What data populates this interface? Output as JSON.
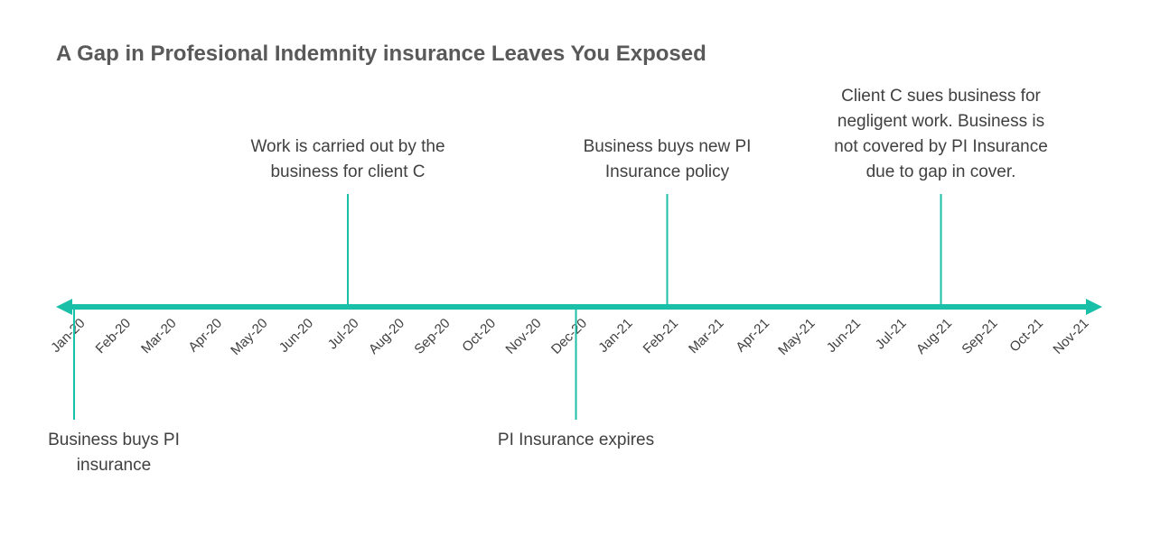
{
  "title": "A Gap in Profesional Indemnity insurance Leaves You Exposed",
  "accent_color": "#19BFA6",
  "text_color": "#404040",
  "months": [
    "Jan-20",
    "Feb-20",
    "Mar-20",
    "Apr-20",
    "May-20",
    "Jun-20",
    "Jul-20",
    "Aug-20",
    "Sep-20",
    "Oct-20",
    "Nov-20",
    "Dec-20",
    "Jan-21",
    "Feb-21",
    "Mar-21",
    "Apr-21",
    "May-21",
    "Jun-21",
    "Jul-21",
    "Aug-21",
    "Sep-21",
    "Oct-21",
    "Nov-21"
  ],
  "events": [
    {
      "month": "Jan-20",
      "side": "below",
      "label": "Business buys PI insurance"
    },
    {
      "month": "Jul-20",
      "side": "above",
      "label": "Work is carried out by the business for client C"
    },
    {
      "month": "Dec-20",
      "side": "below",
      "label": "PI Insurance expires"
    },
    {
      "month": "Feb-21",
      "side": "above",
      "label": "Business buys new PI Insurance policy"
    },
    {
      "month": "Aug-21",
      "side": "above",
      "label": "Client C sues business for negligent work. Business is not covered by PI Insurance due to gap in cover."
    }
  ]
}
